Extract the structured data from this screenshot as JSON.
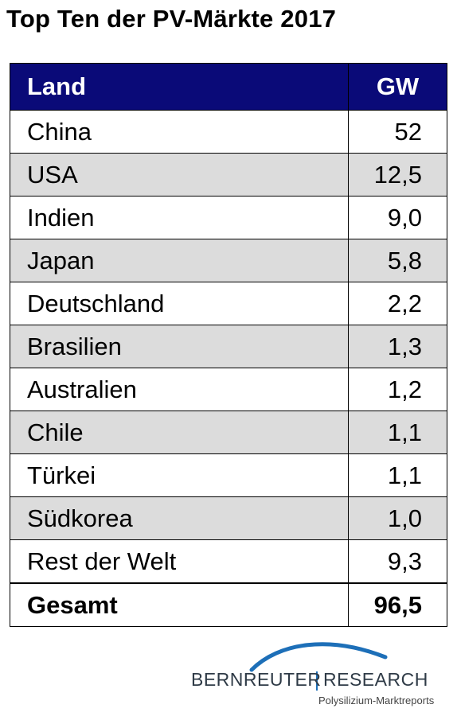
{
  "title": "Top Ten der PV-Märkte 2017",
  "chart_data": {
    "type": "table",
    "title": "Top Ten der PV-Märkte 2017",
    "columns": [
      "Land",
      "GW"
    ],
    "rows": [
      {
        "land": "China",
        "gw": "52"
      },
      {
        "land": "USA",
        "gw": "12,5"
      },
      {
        "land": "Indien",
        "gw": "9,0"
      },
      {
        "land": "Japan",
        "gw": "5,8"
      },
      {
        "land": "Deutschland",
        "gw": "2,2"
      },
      {
        "land": "Brasilien",
        "gw": "1,3"
      },
      {
        "land": "Australien",
        "gw": "1,2"
      },
      {
        "land": "Chile",
        "gw": "1,1"
      },
      {
        "land": "Türkei",
        "gw": "1,1"
      },
      {
        "land": "Südkorea",
        "gw": "1,0"
      },
      {
        "land": "Rest der Welt",
        "gw": "9,3"
      }
    ],
    "total": {
      "land": "Gesamt",
      "gw": "96,5"
    }
  },
  "colors": {
    "header_bg": "#0a0a78",
    "header_text": "#ffffff",
    "stripe": "#dcdcdc",
    "logo_arc": "#1d6fb8"
  },
  "logo": {
    "left": "BERNREUTER",
    "right": "RESEARCH",
    "tagline": "Polysilizium-Marktreports",
    "icon": "arc-swoosh-icon"
  }
}
